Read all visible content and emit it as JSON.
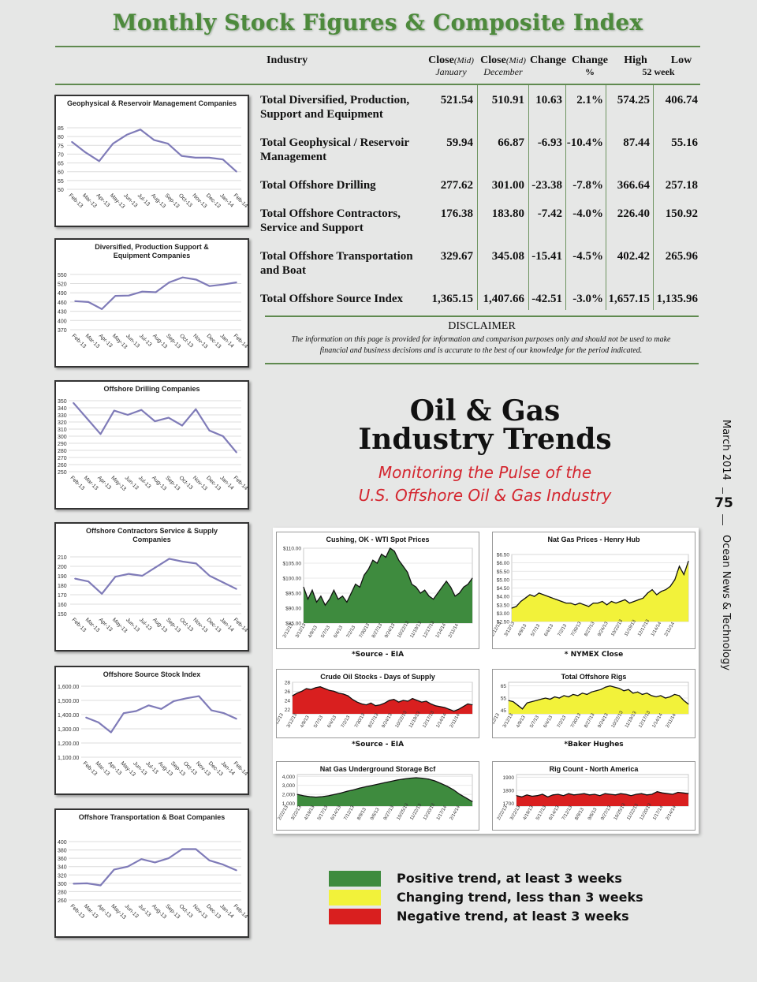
{
  "title": "Monthly Stock Figures & Composite Index",
  "table": {
    "headers": {
      "industry": "Industry",
      "close_jan": "Close",
      "close_jan_mid": "(Mid)",
      "close_jan_sub": "January",
      "close_dec": "Close",
      "close_dec_mid": "(Mid)",
      "close_dec_sub": "December",
      "change": "Change",
      "change_pct": "Change",
      "change_pct_sub": "%",
      "high": "High",
      "low": "Low",
      "week_sub": "52 week"
    },
    "rows": [
      {
        "name": "Total Diversified, Production, Support and Equipment",
        "jan": "521.54",
        "dec": "510.91",
        "change": "10.63",
        "pct": "2.1%",
        "high": "574.25",
        "low": "406.74"
      },
      {
        "name": "Total Geophysical / Reservoir Management",
        "jan": "59.94",
        "dec": "66.87",
        "change": "-6.93",
        "pct": "-10.4%",
        "high": "87.44",
        "low": "55.16"
      },
      {
        "name": "Total Offshore Drilling",
        "jan": "277.62",
        "dec": "301.00",
        "change": "-23.38",
        "pct": "-7.8%",
        "high": "366.64",
        "low": "257.18"
      },
      {
        "name": "Total Offshore Contractors, Service and Support",
        "jan": "176.38",
        "dec": "183.80",
        "change": "-7.42",
        "pct": "-4.0%",
        "high": "226.40",
        "low": "150.92"
      },
      {
        "name": "Total Offshore Transportation and Boat",
        "jan": "329.67",
        "dec": "345.08",
        "change": "-15.41",
        "pct": "-4.5%",
        "high": "402.42",
        "low": "265.96"
      },
      {
        "name": "Total Offshore Source Index",
        "jan": "1,365.15",
        "dec": "1,407.66",
        "change": "-42.51",
        "pct": "-3.0%",
        "high": "1,657.15",
        "low": "1,135.96"
      }
    ]
  },
  "disclaimer": {
    "title": "DISCLAIMER",
    "text": "The information on this page is provided for information and comparison purposes only and should not be used to make financial and business decisions and is accurate to the best of our knowledge for the period indicated."
  },
  "trends": {
    "title_line1": "Oil & Gas",
    "title_line2": "Industry Trends",
    "subtitle_line1": "Monitoring the Pulse of the",
    "subtitle_line2": "U.S. Offshore Oil & Gas Industry"
  },
  "legend": [
    {
      "color": "#3e8b3e",
      "label": "Positive trend, at least 3 weeks"
    },
    {
      "color": "#f2f23a",
      "label": "Changing trend, less than 3 weeks"
    },
    {
      "color": "#d91f1f",
      "label": "Negative trend, at least 3 weeks"
    }
  ],
  "side": {
    "date": "March 2014",
    "page": "75",
    "publication": "Ocean News & Technology"
  },
  "chart_data": [
    {
      "type": "line",
      "title": "Geophysical & Reservoir Management Companies",
      "categories": [
        "Feb-13",
        "Mar-13",
        "Apr-13",
        "May-13",
        "Jun-13",
        "Jul-13",
        "Aug-13",
        "Sep-13",
        "Oct-13",
        "Nov-13",
        "Dec-13",
        "Jan-14",
        "Feb-14"
      ],
      "values": [
        77,
        71,
        66,
        76,
        81,
        84,
        78,
        76,
        69,
        68,
        68,
        67,
        60
      ],
      "yticks": [
        85,
        80,
        75,
        70,
        65,
        60,
        55,
        50
      ],
      "ylim": [
        50,
        85
      ]
    },
    {
      "type": "line",
      "title": "Diversified, Production Support & Equipment Companies",
      "categories": [
        "Feb-13",
        "Mar-13",
        "Apr-13",
        "May-13",
        "Jun-13",
        "Jul-13",
        "Aug-13",
        "Sep-13",
        "Oct-13",
        "Nov-13",
        "Dec-13",
        "Jan-14",
        "Feb-14"
      ],
      "values": [
        463,
        460,
        437,
        480,
        481,
        494,
        492,
        524,
        540,
        533,
        512,
        517,
        524
      ],
      "yticks": [
        550,
        520,
        490,
        460,
        430,
        400,
        370
      ],
      "ylim": [
        370,
        565
      ]
    },
    {
      "type": "line",
      "title": "Offshore Drilling Companies",
      "categories": [
        "Feb-13",
        "Mar-13",
        "Apr-13",
        "May-13",
        "Jun-13",
        "Jul-13",
        "Aug-13",
        "Sep-13",
        "Oct-13",
        "Nov-13",
        "Dec-13",
        "Jan-14",
        "Feb-14"
      ],
      "values": [
        347,
        325,
        303,
        336,
        330,
        337,
        321,
        326,
        315,
        338,
        308,
        300,
        277
      ],
      "yticks": [
        350,
        340,
        330,
        320,
        310,
        300,
        290,
        280,
        270,
        260,
        250
      ],
      "ylim": [
        250,
        350
      ]
    },
    {
      "type": "line",
      "title": "Offshore Contractors Service & Supply Companies",
      "categories": [
        "Feb-13",
        "Mar-13",
        "Apr-13",
        "May-13",
        "Jun-13",
        "Jul-13",
        "Aug-13",
        "Sep-13",
        "Oct-13",
        "Nov-13",
        "Dec-13",
        "Jan-14",
        "Feb-14"
      ],
      "values": [
        187,
        184,
        171,
        189,
        192,
        190,
        199,
        208,
        205,
        203,
        190,
        183,
        176
      ],
      "yticks": [
        210,
        200,
        190,
        180,
        170,
        160,
        150
      ],
      "ylim": [
        150,
        215
      ]
    },
    {
      "type": "line",
      "title": "Offshore Source Stock Index",
      "categories": [
        "Feb-13",
        "Mar-13",
        "Apr-13",
        "May-13",
        "Jun-13",
        "Jul-13",
        "Aug-13",
        "Sep-13",
        "Oct-13",
        "Nov-13",
        "Dec-13",
        "Jan-14",
        "Feb-14"
      ],
      "values": [
        1380,
        1345,
        1275,
        1410,
        1425,
        1465,
        1440,
        1495,
        1515,
        1530,
        1430,
        1410,
        1370
      ],
      "yticks": [
        "1,600.00",
        "1,500.00",
        "1,400.00",
        "1,300.00",
        "1,200.00",
        "1,100.00"
      ],
      "ytick_values": [
        1600,
        1500,
        1400,
        1300,
        1200,
        1100
      ],
      "ylim": [
        1100,
        1600
      ]
    },
    {
      "type": "line",
      "title": "Offshore Transportation & Boat Companies",
      "categories": [
        "Feb-13",
        "Mar-13",
        "Apr-13",
        "May-13",
        "Jun-13",
        "Jul-13",
        "Aug-13",
        "Sep-13",
        "Oct-13",
        "Nov-13",
        "Dec-13",
        "Jan-14",
        "Feb-14"
      ],
      "values": [
        299,
        300,
        295,
        333,
        340,
        358,
        350,
        360,
        382,
        382,
        355,
        345,
        331
      ],
      "yticks": [
        400,
        380,
        360,
        340,
        320,
        300,
        280,
        260
      ],
      "ylim": [
        260,
        400
      ]
    },
    {
      "type": "area",
      "title": "Cushing, OK - WTI Spot Prices",
      "source": "*Source - EIA",
      "color": "#3e8b3e",
      "yticks": [
        "$110.00",
        "$105.00",
        "$100.00",
        "$95.00",
        "$90.00",
        "$85.00"
      ],
      "ytick_values": [
        110,
        105,
        100,
        95,
        90,
        85
      ],
      "ylim": [
        85,
        110
      ],
      "xticks": [
        "2/12/13",
        "3/12/13",
        "4/9/13",
        "5/7/13",
        "6/4/13",
        "7/2/13",
        "7/30/13",
        "8/27/13",
        "9/24/13",
        "10/22/13",
        "11/19/13",
        "12/17/13",
        "1/14/14",
        "2/11/14"
      ],
      "values": [
        97,
        93,
        96,
        92,
        94,
        91,
        93,
        96,
        93,
        94,
        92,
        95,
        98,
        97,
        101,
        103,
        106,
        105,
        108,
        107,
        110,
        109,
        106,
        104,
        102,
        98,
        97,
        95,
        96,
        94,
        93,
        95,
        97,
        99,
        97,
        94,
        95,
        97,
        98,
        100
      ]
    },
    {
      "type": "area",
      "title": "Nat Gas Prices - Henry Hub",
      "source": "* NYMEX Close",
      "color": "#f2f23a",
      "yticks": [
        "$6.50",
        "$6.00",
        "$5.50",
        "$5.00",
        "$4.50",
        "$4.00",
        "$3.50",
        "$3.00",
        "$2.50"
      ],
      "ytick_values": [
        6.5,
        6.0,
        5.5,
        5.0,
        4.5,
        4.0,
        3.5,
        3.0,
        2.5
      ],
      "ylim": [
        2.5,
        6.5
      ],
      "xticks": [
        "2/12/13",
        "3/12/13",
        "4/9/13",
        "5/7/13",
        "6/4/13",
        "7/2/13",
        "7/30/13",
        "8/27/13",
        "9/24/13",
        "10/22/13",
        "11/19/13",
        "12/17/13",
        "1/14/14",
        "2/11/14"
      ],
      "values": [
        3.3,
        3.4,
        3.7,
        3.9,
        4.1,
        4.0,
        4.2,
        4.1,
        4.0,
        3.9,
        3.8,
        3.7,
        3.6,
        3.6,
        3.5,
        3.6,
        3.5,
        3.4,
        3.6,
        3.6,
        3.7,
        3.5,
        3.7,
        3.6,
        3.7,
        3.8,
        3.6,
        3.7,
        3.8,
        3.9,
        4.2,
        4.4,
        4.1,
        4.3,
        4.4,
        4.6,
        5.0,
        5.8,
        5.3,
        6.1
      ]
    },
    {
      "type": "area",
      "title": "Crude Oil Stocks - Days of Supply",
      "source": "*Source - EIA",
      "color": "#d91f1f",
      "yticks": [
        "28",
        "26",
        "24",
        "22"
      ],
      "ytick_values": [
        28,
        26,
        24,
        22
      ],
      "ylim": [
        21,
        28
      ],
      "xticks": [
        "2/12/13",
        "3/12/13",
        "4/9/13",
        "5/7/13",
        "6/4/13",
        "7/2/13",
        "7/30/13",
        "8/27/13",
        "9/24/13",
        "10/22/13",
        "11/19/13",
        "12/17/13",
        "1/14/14",
        "2/11/14"
      ],
      "values": [
        25.0,
        25.6,
        26.0,
        26.6,
        26.4,
        26.8,
        27.0,
        26.6,
        26.2,
        26.0,
        25.6,
        25.4,
        25.0,
        24.2,
        23.6,
        23.2,
        23.0,
        23.4,
        22.8,
        23.0,
        23.4,
        24.0,
        24.2,
        23.6,
        24.0,
        23.8,
        24.4,
        24.0,
        23.6,
        23.8,
        23.2,
        22.8,
        22.6,
        22.4,
        22.0,
        21.6,
        22.0,
        22.6,
        23.2,
        23.0
      ]
    },
    {
      "type": "area",
      "title": "Total Offshore Rigs",
      "source": "*Baker Hughes",
      "color": "#f2f23a",
      "yticks": [
        "65",
        "55",
        "45"
      ],
      "ytick_values": [
        65,
        55,
        45
      ],
      "ylim": [
        42,
        68
      ],
      "xticks": [
        "2/12/13",
        "3/12/13",
        "4/9/13",
        "5/7/13",
        "6/4/13",
        "7/2/13",
        "7/30/13",
        "8/27/13",
        "9/24/13",
        "10/22/13",
        "11/19/13",
        "12/17/13",
        "1/14/14",
        "2/11/14"
      ],
      "values": [
        53,
        52,
        49,
        46,
        51,
        52,
        53,
        54,
        55,
        54,
        56,
        55,
        57,
        56,
        58,
        57,
        59,
        58,
        60,
        61,
        62,
        64,
        65,
        64,
        63,
        61,
        62,
        59,
        60,
        58,
        59,
        57,
        56,
        57,
        55,
        56,
        58,
        57,
        53,
        50
      ]
    },
    {
      "type": "area",
      "title": "Nat Gas Underground Storage Bcf",
      "color": "#3e8b3e",
      "yticks": [
        "4,000",
        "3,000",
        "2,000",
        "1,000"
      ],
      "ytick_values": [
        4000,
        3000,
        2000,
        1000
      ],
      "ylim": [
        700,
        4200
      ],
      "xticks": [
        "2/22/13",
        "3/22/13",
        "4/19/13",
        "5/17/13",
        "6/14/13",
        "7/12/13",
        "8/9/13",
        "9/6/13",
        "9/27/13",
        "10/25/13",
        "11/22/13",
        "12/20/13",
        "1/17/14",
        "2/14/14"
      ],
      "values": [
        2000,
        1850,
        1750,
        1700,
        1750,
        1850,
        2000,
        2150,
        2350,
        2500,
        2700,
        2850,
        3000,
        3150,
        3300,
        3450,
        3600,
        3700,
        3800,
        3850,
        3800,
        3700,
        3500,
        3200,
        2900,
        2500,
        2000,
        1600,
        1200
      ]
    },
    {
      "type": "area",
      "title": "Rig Count - North America",
      "color": "#d91f1f",
      "yticks": [
        "1900",
        "1800",
        "1700"
      ],
      "ytick_values": [
        1900,
        1800,
        1700
      ],
      "ylim": [
        1680,
        1920
      ],
      "xticks": [
        "2/22/13",
        "3/22/13",
        "4/19/13",
        "5/17/13",
        "6/14/13",
        "7/12/13",
        "8/9/13",
        "9/6/13",
        "9/27/13",
        "10/25/13",
        "11/22/13",
        "12/20/13",
        "1/17/14",
        "2/14/14"
      ],
      "values": [
        1760,
        1750,
        1765,
        1755,
        1760,
        1770,
        1750,
        1765,
        1770,
        1760,
        1775,
        1765,
        1770,
        1775,
        1765,
        1770,
        1760,
        1775,
        1770,
        1765,
        1775,
        1770,
        1760,
        1770,
        1775,
        1765,
        1770,
        1790,
        1780,
        1775,
        1770,
        1785,
        1780,
        1775
      ]
    }
  ]
}
